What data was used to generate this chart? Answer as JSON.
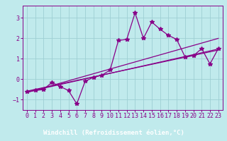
{
  "bg_color": "#c0eaec",
  "plot_bg": "#c0eaec",
  "grid_color": "#9ecfd4",
  "line_color": "#880088",
  "marker": "*",
  "markersize": 4,
  "linewidth": 0.9,
  "xlabel": "Windchill (Refroidissement éolien,°C)",
  "xlabel_bg": "#550055",
  "xlabel_fg": "#ffffff",
  "xlabel_fontsize": 6.5,
  "tick_fontsize": 6,
  "tick_color": "#880088",
  "xlim": [
    -0.5,
    23.5
  ],
  "ylim": [
    -1.5,
    3.6
  ],
  "yticks": [
    -1,
    0,
    1,
    2,
    3
  ],
  "xticks": [
    0,
    1,
    2,
    3,
    4,
    5,
    6,
    7,
    8,
    9,
    10,
    11,
    12,
    13,
    14,
    15,
    16,
    17,
    18,
    19,
    20,
    21,
    22,
    23
  ],
  "data_x": [
    0,
    1,
    2,
    3,
    4,
    5,
    6,
    7,
    8,
    9,
    10,
    11,
    12,
    13,
    14,
    15,
    16,
    17,
    18,
    19,
    20,
    21,
    22,
    23
  ],
  "data_y": [
    -0.6,
    -0.55,
    -0.5,
    -0.15,
    -0.35,
    -0.55,
    -1.2,
    -0.1,
    0.1,
    0.2,
    0.45,
    1.9,
    1.95,
    3.25,
    2.0,
    2.8,
    2.45,
    2.15,
    1.95,
    1.1,
    1.15,
    1.5,
    0.75,
    1.5
  ],
  "trend_lines": [
    {
      "x": [
        0,
        23
      ],
      "y": [
        -0.65,
        2.0
      ]
    },
    {
      "x": [
        0,
        23
      ],
      "y": [
        -0.62,
        1.48
      ]
    },
    {
      "x": [
        0,
        23
      ],
      "y": [
        -0.58,
        1.43
      ]
    }
  ]
}
